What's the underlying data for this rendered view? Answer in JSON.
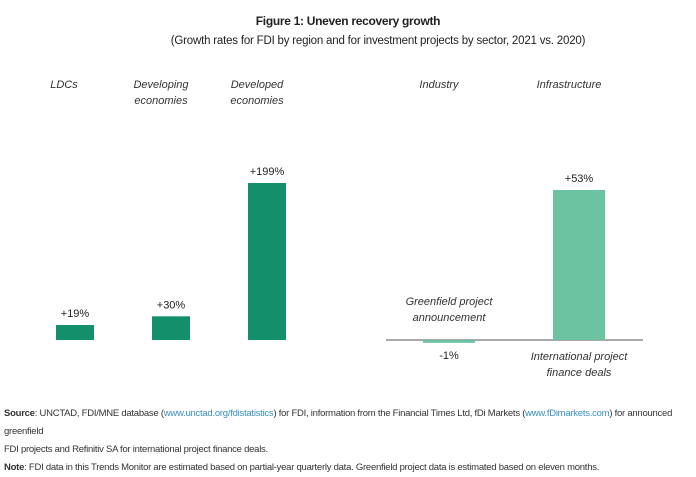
{
  "chart_data": [
    {
      "type": "bar",
      "title": "Figure 1: Uneven recovery growth",
      "subtitle": "(Growth rates for FDI by region and for investment projects by sector, 2021 vs. 2020)",
      "categories": [
        "LDCs",
        "Developing economies",
        "Developed economies"
      ],
      "values": [
        19,
        30,
        199
      ],
      "labels": [
        "+19%",
        "+30%",
        "+199%"
      ],
      "unit": "%",
      "color": "#13906b"
    },
    {
      "type": "bar",
      "categories": [
        "Industry",
        "Infrastructure"
      ],
      "bar_labels": [
        "Greenfield project announcement",
        "International project finance deals"
      ],
      "values": [
        -1,
        53
      ],
      "labels": [
        "-1%",
        "+53%"
      ],
      "unit": "%",
      "color": "#6cc3a1"
    }
  ],
  "footer": {
    "source_label": "Source",
    "source_1": ": UNCTAD, FDI/MNE database (",
    "link_1": "www.unctad.org/fdistatistics",
    "source_2": ") for FDI, information from the Financial Times Ltd, fDi Markets (",
    "link_2": "www.fDimarkets.com",
    "source_3": ") for announced greenfield",
    "source_line2": "FDI projects and Refinitiv SA for international project finance deals.",
    "note_label": "Note",
    "note": ": FDI data in this Trends Monitor are estimated based on partial-year quarterly data. Greenfield project data is estimated based on eleven months."
  }
}
